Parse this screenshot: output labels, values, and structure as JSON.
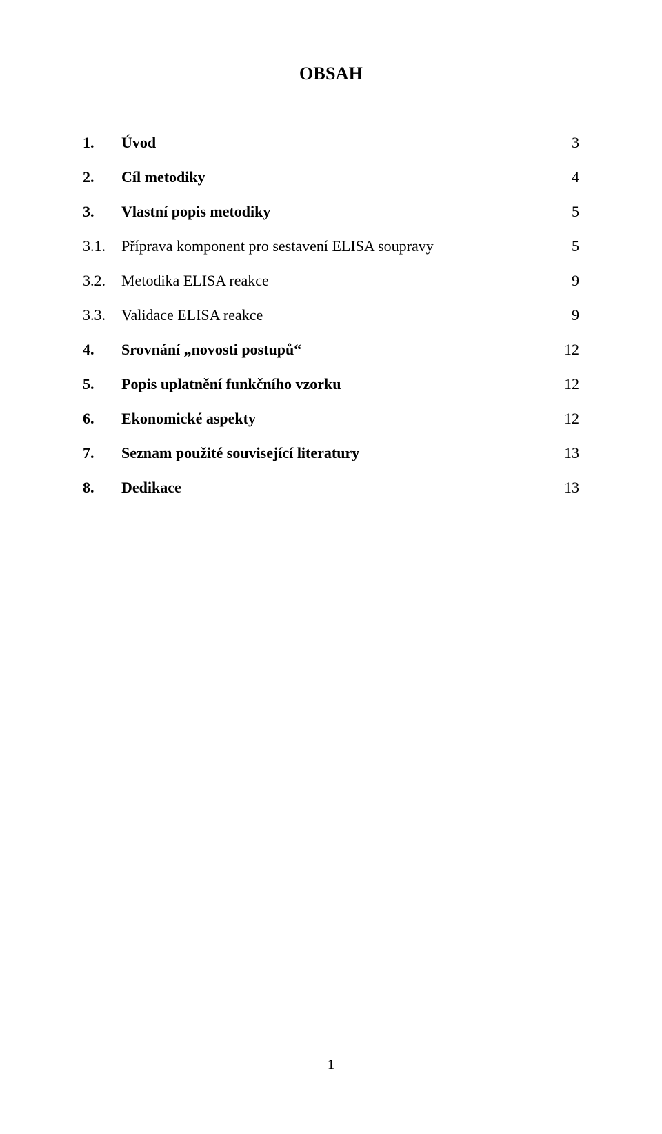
{
  "title": "OBSAH",
  "toc": [
    {
      "num": "1.",
      "label": "Úvod",
      "page": "3",
      "bold": true
    },
    {
      "num": "2.",
      "label": "Cíl metodiky",
      "page": "4",
      "bold": true
    },
    {
      "num": "3.",
      "label": "Vlastní popis metodiky",
      "page": "5",
      "bold": true
    },
    {
      "num": "3.1.",
      "label": "Příprava komponent pro sestavení ELISA soupravy",
      "page": "5",
      "bold": false
    },
    {
      "num": "3.2.",
      "label": "Metodika ELISA reakce",
      "page": "9",
      "bold": false
    },
    {
      "num": "3.3.",
      "label": "Validace ELISA reakce",
      "page": "9",
      "bold": false
    },
    {
      "num": "4.",
      "label": "Srovnání „novosti postupů“",
      "page": "12",
      "bold": true
    },
    {
      "num": "5.",
      "label": "Popis uplatnění funkčního vzorku",
      "page": "12",
      "bold": true
    },
    {
      "num": "6.",
      "label": "Ekonomické aspekty",
      "page": "12",
      "bold": true
    },
    {
      "num": "7.",
      "label": "Seznam použité související literatury",
      "page": "13",
      "bold": true
    },
    {
      "num": "8.",
      "label": "Dedikace",
      "page": "13",
      "bold": true
    }
  ],
  "page_number": "1",
  "style": {
    "background_color": "#ffffff",
    "text_color": "#000000",
    "title_fontsize": 26,
    "body_fontsize": 22,
    "font_family": "Times New Roman"
  }
}
